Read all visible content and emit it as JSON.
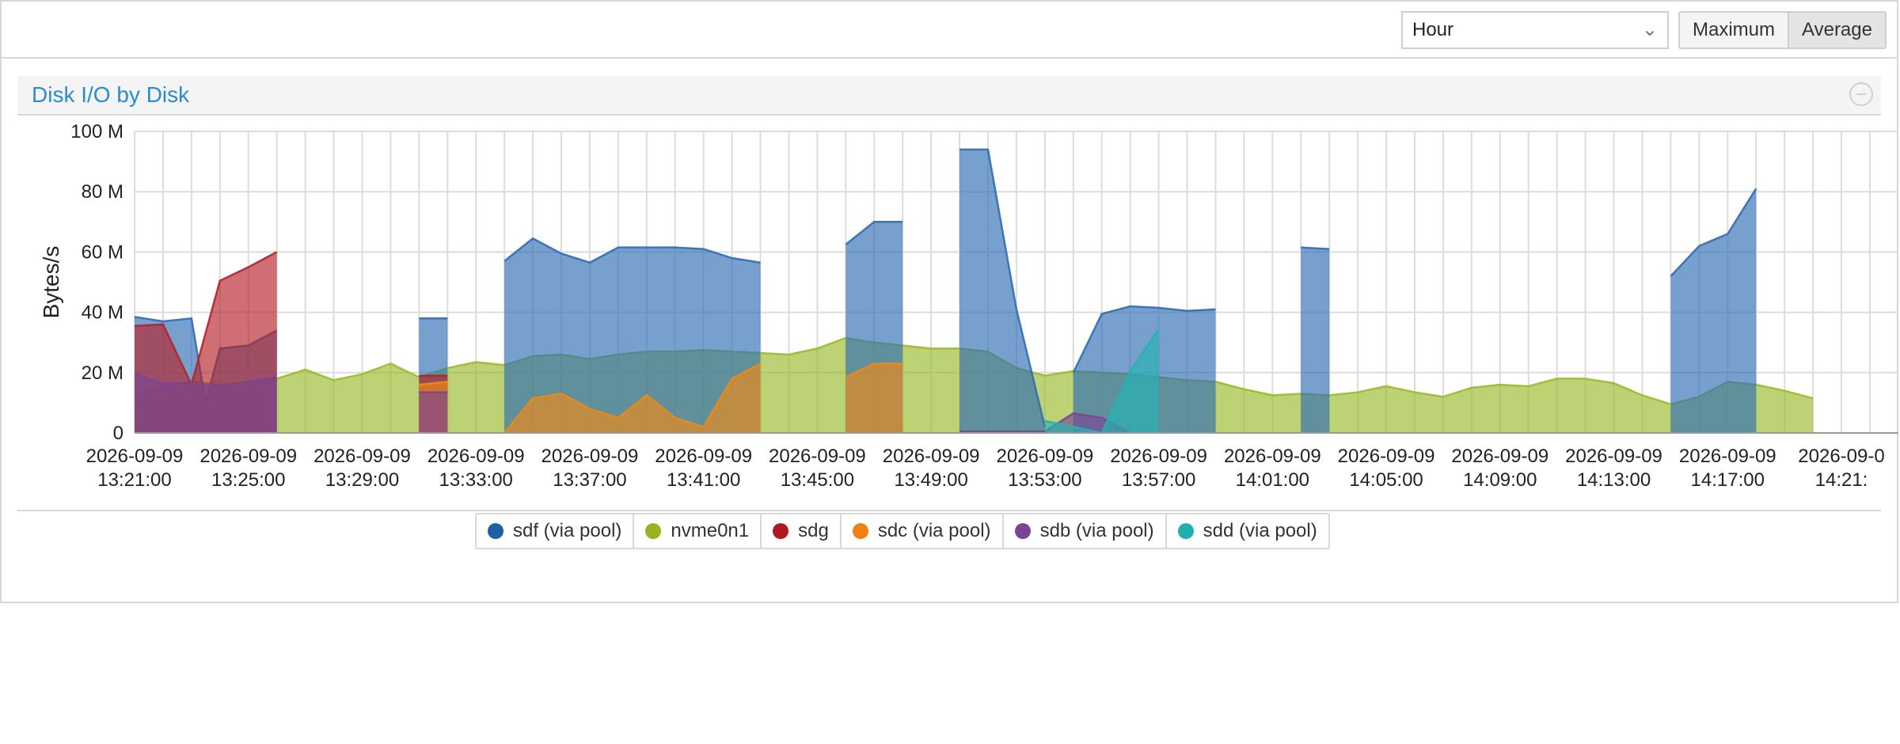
{
  "toolbar": {
    "timeframe_value": "Hour",
    "chevron_icon": "chevron-down-icon",
    "maximum_label": "Maximum",
    "average_label": "Average",
    "active": "Average"
  },
  "chart_panel": {
    "title": "Disk I/O by Disk",
    "collapse_icon": "minus-circle-icon"
  },
  "chart_data": {
    "type": "area",
    "title": "Disk I/O by Disk",
    "xlabel": "",
    "ylabel": "Bytes/s",
    "ylim": [
      0,
      100000000
    ],
    "yticks": [
      0,
      20000000,
      40000000,
      60000000,
      80000000,
      100000000
    ],
    "ytick_labels": [
      "0",
      "20 M",
      "40 M",
      "60 M",
      "80 M",
      "100 M"
    ],
    "grid": true,
    "legend_position": "bottom",
    "x_start": "2026-09-09 13:21:00",
    "x_end": "2026-09-09 14:21:00",
    "xticks": [
      {
        "date": "2026-09-09",
        "time": "13:21:00"
      },
      {
        "date": "2026-09-09",
        "time": "13:25:00"
      },
      {
        "date": "2026-09-09",
        "time": "13:29:00"
      },
      {
        "date": "2026-09-09",
        "time": "13:33:00"
      },
      {
        "date": "2026-09-09",
        "time": "13:37:00"
      },
      {
        "date": "2026-09-09",
        "time": "13:41:00"
      },
      {
        "date": "2026-09-09",
        "time": "13:45:00"
      },
      {
        "date": "2026-09-09",
        "time": "13:49:00"
      },
      {
        "date": "2026-09-09",
        "time": "13:53:00"
      },
      {
        "date": "2026-09-09",
        "time": "13:57:00"
      },
      {
        "date": "2026-09-09",
        "time": "14:01:00"
      },
      {
        "date": "2026-09-09",
        "time": "14:05:00"
      },
      {
        "date": "2026-09-09",
        "time": "14:09:00"
      },
      {
        "date": "2026-09-09",
        "time": "14:13:00"
      },
      {
        "date": "2026-09-09",
        "time": "14:17:00"
      },
      {
        "date": "2026-09-0",
        "time": "14:21:"
      }
    ],
    "series": [
      {
        "name": "nvme0n1",
        "color": "#9aba2a",
        "segments": [
          [
            [
              "13:21:00",
              12
            ],
            [
              "13:22:00",
              16
            ],
            [
              "13:23:00",
              17
            ],
            [
              "13:24:00",
              16
            ],
            [
              "13:25:00",
              17
            ],
            [
              "13:26:00",
              18
            ],
            [
              "13:27:00",
              21
            ],
            [
              "13:28:00",
              17.5
            ],
            [
              "13:29:00",
              19.5
            ],
            [
              "13:30:00",
              23
            ],
            [
              "13:31:00",
              18.5
            ],
            [
              "13:32:00",
              21.5
            ],
            [
              "13:33:00",
              23.5
            ],
            [
              "13:34:00",
              22.5
            ],
            [
              "13:35:00",
              25.5
            ],
            [
              "13:36:00",
              26
            ],
            [
              "13:37:00",
              24.5
            ],
            [
              "13:38:00",
              26
            ],
            [
              "13:39:00",
              27
            ],
            [
              "13:40:00",
              27
            ],
            [
              "13:41:00",
              27.5
            ],
            [
              "13:42:00",
              27
            ],
            [
              "13:43:00",
              26.5
            ],
            [
              "13:44:00",
              26
            ],
            [
              "13:45:00",
              28
            ],
            [
              "13:46:00",
              31.5
            ],
            [
              "13:47:00",
              30
            ],
            [
              "13:48:00",
              29
            ],
            [
              "13:49:00",
              28
            ],
            [
              "13:50:00",
              28
            ],
            [
              "13:51:00",
              27
            ],
            [
              "13:52:00",
              21.5
            ],
            [
              "13:53:00",
              19
            ],
            [
              "13:54:00",
              20.5
            ],
            [
              "13:55:00",
              20
            ],
            [
              "13:56:00",
              19.5
            ],
            [
              "13:57:00",
              18.5
            ],
            [
              "13:58:00",
              17.5
            ],
            [
              "13:59:00",
              17
            ],
            [
              "14:00:00",
              14.5
            ],
            [
              "14:01:00",
              12.5
            ],
            [
              "14:02:00",
              13
            ],
            [
              "14:03:00",
              12.5
            ],
            [
              "14:04:00",
              13.5
            ],
            [
              "14:05:00",
              15.5
            ],
            [
              "14:06:00",
              13.5
            ],
            [
              "14:07:00",
              12
            ],
            [
              "14:08:00",
              15
            ],
            [
              "14:09:00",
              16
            ],
            [
              "14:10:00",
              15.5
            ],
            [
              "14:11:00",
              18
            ],
            [
              "14:12:00",
              18
            ],
            [
              "14:13:00",
              16.5
            ],
            [
              "14:14:00",
              12.5
            ],
            [
              "14:15:00",
              9.5
            ],
            [
              "14:16:00",
              12
            ],
            [
              "14:17:00",
              17
            ],
            [
              "14:18:00",
              16
            ],
            [
              "14:19:00",
              14
            ],
            [
              "14:20:00",
              11.5
            ]
          ]
        ]
      },
      {
        "name": "sdf (via pool)",
        "color": "#2f6db3",
        "segments": [
          [
            [
              "13:21:00",
              38.5
            ],
            [
              "13:22:00",
              37
            ],
            [
              "13:23:00",
              38
            ],
            [
              "13:23:30",
              10
            ],
            [
              "13:24:00",
              28
            ],
            [
              "13:25:00",
              29
            ],
            [
              "13:26:00",
              34
            ]
          ],
          [
            [
              "13:31:00",
              38
            ],
            [
              "13:32:00",
              38
            ]
          ],
          [
            [
              "13:34:00",
              57
            ],
            [
              "13:35:00",
              64.5
            ],
            [
              "13:36:00",
              59.5
            ],
            [
              "13:37:00",
              56.5
            ],
            [
              "13:38:00",
              61.5
            ],
            [
              "13:39:00",
              61.5
            ],
            [
              "13:40:00",
              61.5
            ],
            [
              "13:41:00",
              61
            ],
            [
              "13:42:00",
              58
            ],
            [
              "13:43:00",
              56.5
            ]
          ],
          [
            [
              "13:46:00",
              62.5
            ],
            [
              "13:47:00",
              70
            ],
            [
              "13:48:00",
              70
            ]
          ],
          [
            [
              "13:50:00",
              94
            ],
            [
              "13:51:00",
              94
            ],
            [
              "13:52:00",
              41
            ],
            [
              "13:53:00",
              2
            ]
          ],
          [
            [
              "13:54:00",
              20
            ],
            [
              "13:55:00",
              39.5
            ],
            [
              "13:56:00",
              42
            ],
            [
              "13:57:00",
              41.5
            ],
            [
              "13:58:00",
              40.5
            ],
            [
              "13:59:00",
              41
            ]
          ],
          [
            [
              "14:02:00",
              61.5
            ],
            [
              "14:03:00",
              61
            ]
          ],
          [
            [
              "14:15:00",
              52
            ],
            [
              "14:16:00",
              62
            ],
            [
              "14:17:00",
              66
            ],
            [
              "14:18:00",
              81
            ]
          ]
        ]
      },
      {
        "name": "sdg",
        "color": "#b5222a",
        "segments": [
          [
            [
              "13:21:00",
              35.5
            ],
            [
              "13:22:00",
              36
            ],
            [
              "13:23:00",
              16
            ],
            [
              "13:24:00",
              50.5
            ],
            [
              "13:25:00",
              55
            ],
            [
              "13:26:00",
              60
            ]
          ],
          [
            [
              "13:31:00",
              19
            ],
            [
              "13:32:00",
              19
            ]
          ]
        ]
      },
      {
        "name": "sdc (via pool)",
        "color": "#f08a12",
        "segments": [
          [
            [
              "13:31:00",
              16
            ],
            [
              "13:32:00",
              17
            ]
          ],
          [
            [
              "13:34:00",
              0
            ],
            [
              "13:35:00",
              11.5
            ],
            [
              "13:36:00",
              13
            ],
            [
              "13:37:00",
              8
            ],
            [
              "13:38:00",
              5
            ],
            [
              "13:39:00",
              12.5
            ],
            [
              "13:40:00",
              5
            ],
            [
              "13:41:00",
              2
            ],
            [
              "13:42:00",
              18
            ],
            [
              "13:43:00",
              23
            ]
          ],
          [
            [
              "13:46:00",
              18.5
            ],
            [
              "13:47:00",
              23
            ],
            [
              "13:48:00",
              23
            ]
          ]
        ]
      },
      {
        "name": "sdb (via pool)",
        "color": "#7b4596",
        "segments": [
          [
            [
              "13:21:00",
              19.5
            ],
            [
              "13:22:00",
              16.5
            ],
            [
              "13:23:00",
              16.5
            ],
            [
              "13:24:00",
              15.5
            ],
            [
              "13:25:00",
              17
            ],
            [
              "13:26:00",
              18.5
            ]
          ],
          [
            [
              "13:31:00",
              13.5
            ],
            [
              "13:32:00",
              13.5
            ]
          ],
          [
            [
              "13:50:00",
              0.5
            ],
            [
              "13:51:00",
              0.5
            ],
            [
              "13:52:00",
              0.5
            ],
            [
              "13:53:00",
              0.5
            ],
            [
              "13:54:00",
              6.5
            ],
            [
              "13:55:00",
              5
            ],
            [
              "13:56:00",
              0
            ]
          ]
        ]
      },
      {
        "name": "sdd (via pool)",
        "color": "#24b3b3",
        "segments": [
          [
            [
              "13:53:00",
              4
            ],
            [
              "13:55:00",
              0
            ]
          ],
          [
            [
              "13:55:00",
              0
            ],
            [
              "13:56:00",
              20.5
            ],
            [
              "13:57:00",
              34.5
            ]
          ]
        ]
      }
    ]
  },
  "legend": [
    {
      "label": "sdf (via pool)",
      "color": "#1f5ea8"
    },
    {
      "label": "nvme0n1",
      "color": "#98b41c"
    },
    {
      "label": "sdg",
      "color": "#b01820"
    },
    {
      "label": "sdc (via pool)",
      "color": "#f08010"
    },
    {
      "label": "sdb (via pool)",
      "color": "#7b4596"
    },
    {
      "label": "sdd (via pool)",
      "color": "#20b0b0"
    }
  ]
}
